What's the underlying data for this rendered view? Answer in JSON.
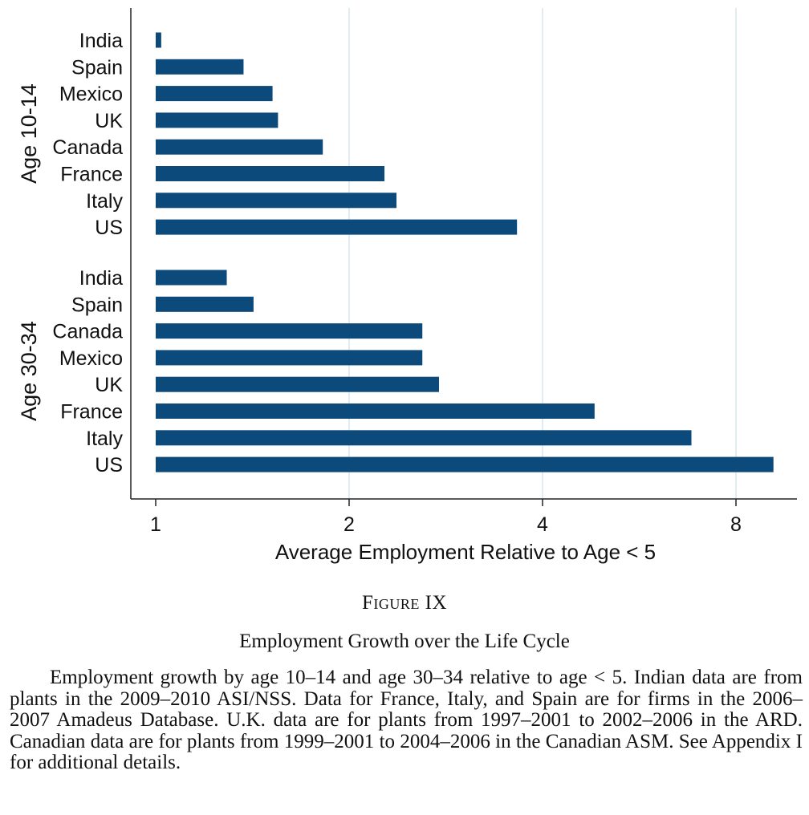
{
  "chart_data": {
    "type": "bar",
    "orientation": "horizontal",
    "xlabel": "Average Employment Relative to Age < 5",
    "x_scale": "log2",
    "xlim": [
      0.93,
      10
    ],
    "xticks": [
      1,
      2,
      4,
      8
    ],
    "xtick_labels": [
      "1",
      "2",
      "4",
      "8"
    ],
    "grid": "vertical lines at ticks",
    "bar_color": "#0d4a7c",
    "groups": [
      {
        "name": "Age 10-14",
        "categories": [
          "India",
          "Spain",
          "Mexico",
          "UK",
          "Canada",
          "France",
          "Italy",
          "US"
        ],
        "values": [
          1.02,
          1.37,
          1.52,
          1.55,
          1.82,
          2.27,
          2.37,
          3.65
        ]
      },
      {
        "name": "Age 30-34",
        "categories": [
          "India",
          "Spain",
          "Canada",
          "Mexico",
          "UK",
          "France",
          "Italy",
          "US"
        ],
        "values": [
          1.29,
          1.42,
          2.6,
          2.6,
          2.76,
          4.82,
          6.82,
          9.15
        ]
      }
    ]
  },
  "figure": {
    "label": "Figure IX",
    "title": "Employment Growth over the Life Cycle",
    "note": "Employment growth by age 10–14 and age 30–34 relative to age < 5. Indian data are from plants in the 2009–2010 ASI/NSS. Data for France, Italy, and Spain are for firms in the 2006–2007 Amadeus Database. U.K. data are for plants from 1997–2001 to 2002–2006 in the ARD. Canadian data are for plants from 1999–2001 to 2004–2006 in the Canadian ASM. See Appendix I for additional details."
  }
}
